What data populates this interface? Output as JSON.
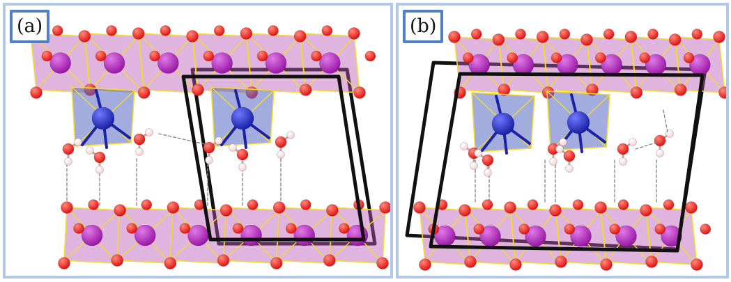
{
  "panels": [
    {
      "id": "a",
      "label": "(a)"
    },
    {
      "id": "b",
      "label": "(b)"
    }
  ],
  "colors": {
    "panel_border": "#b3c7e6",
    "label_border": "#4f7fc4",
    "oxygen": "#e21212",
    "hydrogen": "#f3d3d3",
    "manganese_large": "#9a1aa6",
    "polyhedron_purple": "#b75ab8",
    "polyhedron_blue": "#5767c2",
    "cation_blue": "#1b22a6",
    "bond_yellow": "#f2dc2a",
    "unit_cell": "#111111",
    "hbond": "#8a8a8a"
  }
}
